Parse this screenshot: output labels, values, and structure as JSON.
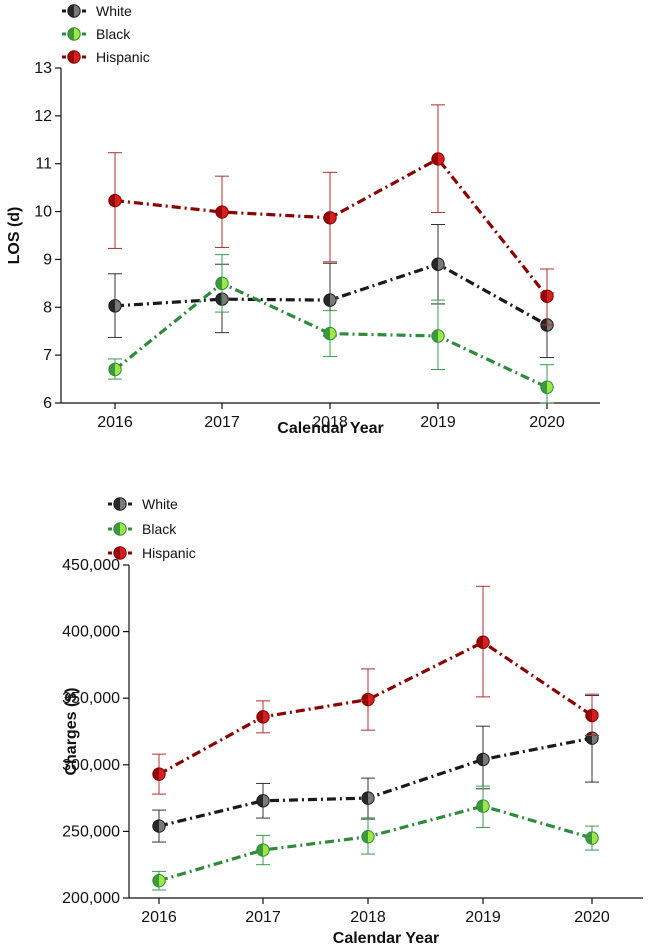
{
  "colors": {
    "White": "#1a1a1a",
    "Black": "#2e8b3c",
    "Hispanic": "#8b0000",
    "White_marker": "#7a7a7a",
    "Black_marker": "#9de845",
    "Hispanic_marker": "#d42020",
    "White_err": "#333333",
    "Black_err": "#3a9a50",
    "Hispanic_err": "#b23030"
  },
  "chart_data": [
    {
      "type": "line",
      "xlabel": "Calendar Year",
      "ylabel": "LOS (d)",
      "categories": [
        "2016",
        "2017",
        "2018",
        "2019",
        "2020"
      ],
      "ylim": [
        6,
        13
      ],
      "yticks": [
        6,
        7,
        8,
        9,
        10,
        11,
        12,
        13
      ],
      "ytick_labels": [
        "6",
        "7",
        "8",
        "9",
        "10",
        "11",
        "12",
        "13"
      ],
      "legend": [
        "White",
        "Black",
        "Hispanic"
      ],
      "series": [
        {
          "name": "White",
          "values": [
            8.03,
            8.17,
            8.15,
            8.9,
            7.63
          ],
          "err_low": [
            7.37,
            7.47,
            7.4,
            8.07,
            6.95
          ],
          "err_high": [
            8.7,
            8.9,
            8.92,
            9.73,
            8.3
          ]
        },
        {
          "name": "Black",
          "values": [
            6.7,
            8.5,
            7.45,
            7.4,
            6.33
          ],
          "err_low": [
            6.5,
            7.9,
            6.97,
            6.7,
            6.0
          ],
          "err_high": [
            6.92,
            9.1,
            7.93,
            8.15,
            6.8
          ]
        },
        {
          "name": "Hispanic",
          "values": [
            10.23,
            9.99,
            9.87,
            11.1,
            8.23
          ],
          "err_low": [
            9.23,
            9.25,
            8.95,
            9.98,
            7.63
          ],
          "err_high": [
            11.23,
            10.74,
            10.82,
            12.23,
            8.8
          ]
        }
      ]
    },
    {
      "type": "line",
      "xlabel": "Calendar Year",
      "ylabel": "Charges ($)",
      "categories": [
        "2016",
        "2017",
        "2018",
        "2019",
        "2020"
      ],
      "ylim": [
        200000,
        450000
      ],
      "yticks": [
        200000,
        250000,
        300000,
        350000,
        400000,
        450000
      ],
      "ytick_labels": [
        "200,000",
        "250,000",
        "300,000",
        "350,000",
        "400,000",
        "450,000"
      ],
      "legend": [
        "White",
        "Black",
        "Hispanic"
      ],
      "series": [
        {
          "name": "White",
          "values": [
            254000,
            273000,
            275000,
            304000,
            320000
          ],
          "err_low": [
            242000,
            260000,
            260000,
            282000,
            287000
          ],
          "err_high": [
            266000,
            286000,
            290000,
            329000,
            352000
          ]
        },
        {
          "name": "Black",
          "values": [
            213000,
            236000,
            246000,
            269000,
            245000
          ],
          "err_low": [
            206000,
            225000,
            233000,
            253000,
            236000
          ],
          "err_high": [
            220000,
            247000,
            259000,
            284000,
            254000
          ]
        },
        {
          "name": "Hispanic",
          "values": [
            293000,
            336000,
            349000,
            392000,
            337000
          ],
          "err_low": [
            278000,
            324000,
            326000,
            351000,
            322000
          ],
          "err_high": [
            308000,
            348000,
            372000,
            434000,
            353000
          ]
        }
      ]
    }
  ]
}
